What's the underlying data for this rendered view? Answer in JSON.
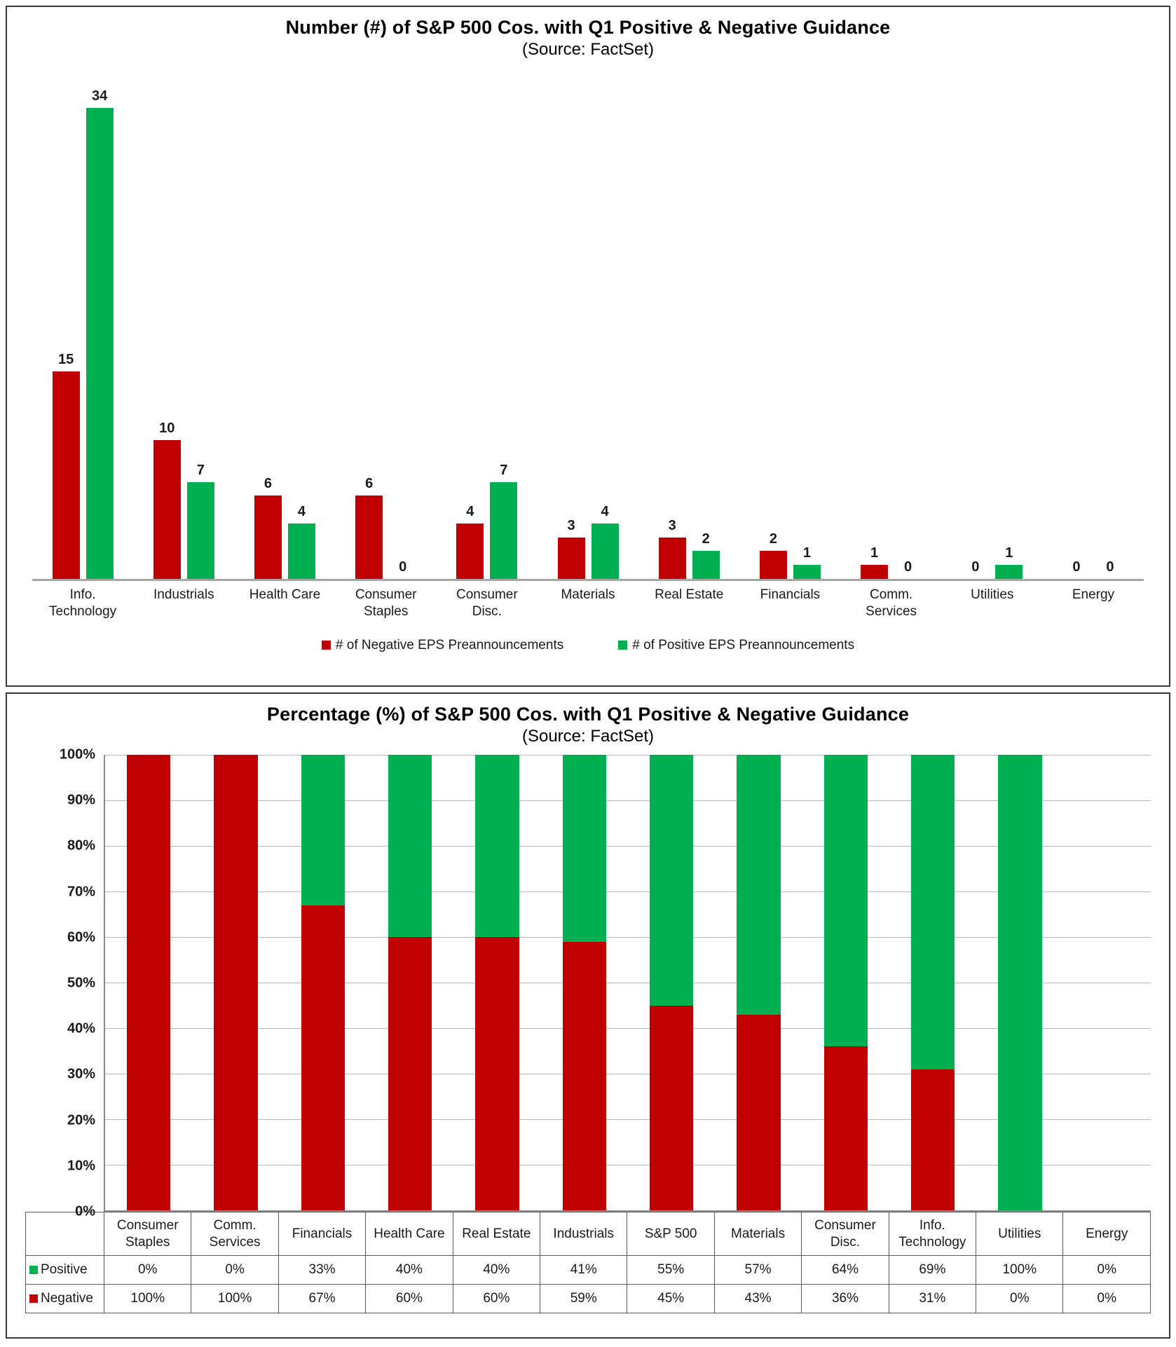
{
  "chart_data": [
    {
      "type": "bar",
      "title": "Number (#) of S&P 500 Cos. with Q1 Positive & Negative Guidance",
      "subtitle": "(Source: FactSet)",
      "categories": [
        "Info. Technology",
        "Industrials",
        "Health Care",
        "Consumer Staples",
        "Consumer Disc.",
        "Materials",
        "Real Estate",
        "Financials",
        "Comm. Services",
        "Utilities",
        "Energy"
      ],
      "series": [
        {
          "name": "# of Negative EPS Preannouncements",
          "color": "#C00000",
          "values": [
            15,
            10,
            6,
            6,
            4,
            3,
            3,
            2,
            1,
            0,
            0
          ]
        },
        {
          "name": "# of Positive EPS Preannouncements",
          "color": "#00B050",
          "values": [
            34,
            7,
            4,
            0,
            7,
            4,
            2,
            1,
            0,
            1,
            0
          ]
        }
      ],
      "data_labels": true,
      "legend_position": "bottom",
      "ylim": [
        0,
        34
      ],
      "grid": false
    },
    {
      "type": "stacked-bar-100",
      "title": "Percentage (%) of S&P 500 Cos. with Q1 Positive & Negative Guidance",
      "subtitle": "(Source: FactSet)",
      "categories": [
        "Consumer Staples",
        "Comm. Services",
        "Financials",
        "Health Care",
        "Real Estate",
        "Industrials",
        "S&P 500",
        "Materials",
        "Consumer Disc.",
        "Info. Technology",
        "Utilities",
        "Energy"
      ],
      "series": [
        {
          "name": "Positive",
          "color": "#00B050",
          "values": [
            0,
            0,
            33,
            40,
            40,
            41,
            55,
            57,
            64,
            69,
            100,
            0
          ]
        },
        {
          "name": "Negative",
          "color": "#C00000",
          "values": [
            100,
            100,
            67,
            60,
            60,
            59,
            45,
            43,
            36,
            31,
            0,
            0
          ]
        }
      ],
      "y_ticks": [
        "0%",
        "10%",
        "20%",
        "30%",
        "40%",
        "50%",
        "60%",
        "70%",
        "80%",
        "90%",
        "100%"
      ],
      "ylim": [
        0,
        100
      ],
      "grid": true,
      "legend_position": "table-left",
      "table": true,
      "value_suffix": "%"
    }
  ]
}
